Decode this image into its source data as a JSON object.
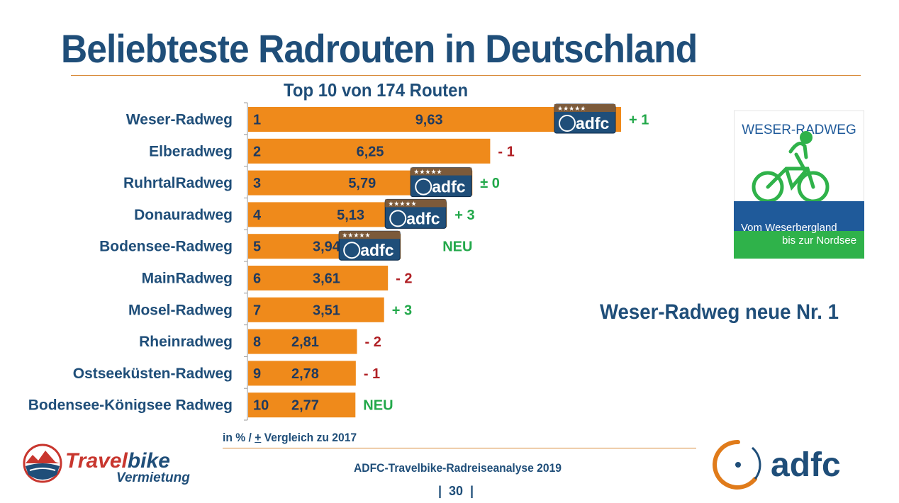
{
  "title": "Beliebteste Radrouten in Deutschland",
  "subtitle": "Top 10 von 174 Routen",
  "chart_data": {
    "type": "bar",
    "orientation": "horizontal",
    "unit": "in %",
    "categories": [
      "Weser-Radweg",
      "Elberadweg",
      "RuhrtalRadweg",
      "Donauradweg",
      "Bodensee-Radweg",
      "MainRadweg",
      "Mosel-Radweg",
      "Rheinradweg",
      "Ostseeküsten-Radweg",
      "Bodensee-Königsee Radweg"
    ],
    "ranks": [
      "1",
      "2",
      "3",
      "4",
      "5",
      "6",
      "7",
      "8",
      "9",
      "10"
    ],
    "values": [
      9.63,
      6.25,
      5.79,
      5.13,
      3.94,
      3.61,
      3.51,
      2.81,
      2.78,
      2.77
    ],
    "value_labels": [
      "9,63",
      "6,25",
      "5,79",
      "5,13",
      "3,94",
      "3,61",
      "3,51",
      "2,81",
      "2,78",
      "2,77"
    ],
    "changes": [
      "+ 1",
      "- 1",
      "± 0",
      "+ 3",
      "NEU",
      "- 2",
      "+ 3",
      "- 2",
      "- 1",
      "NEU"
    ],
    "change_colors": [
      "#22a84a",
      "#b01f24",
      "#22a84a",
      "#22a84a",
      "#22a84a",
      "#b01f24",
      "#22a84a",
      "#b01f24",
      "#b01f24",
      "#22a84a"
    ],
    "adfc_certified": [
      true,
      false,
      true,
      true,
      true,
      false,
      false,
      false,
      false,
      false
    ],
    "xlim": [
      0,
      10.5
    ],
    "bar_color": "#ef8a1b"
  },
  "badge": {
    "text": "adfc",
    "stars": "★★★★★"
  },
  "weser_logo": {
    "title": "WESER-RADWEG",
    "line1": "Vom Weserbergland",
    "line2": "bis zur Nordsee"
  },
  "callout": "Weser-Radweg neue Nr. 1",
  "footnote": {
    "prefix": "in % / ",
    "pm": "+",
    "suffix": " Vergleich zu 2017"
  },
  "source_note": "ADFC-Travelbike-Radreiseanalyse 2019",
  "page_number": "|  30  |",
  "travelbike_logo": {
    "brand_a": "Travel",
    "brand_b": "bike",
    "sub": "Vermietung"
  },
  "adfc_logo": {
    "text": "adfc"
  },
  "colors": {
    "title": "#1f4e79",
    "bar": "#ef8a1b",
    "positive": "#22a84a",
    "negative": "#b01f24",
    "badge_bg": "#1f4e79",
    "accent": "#e07b1a"
  }
}
